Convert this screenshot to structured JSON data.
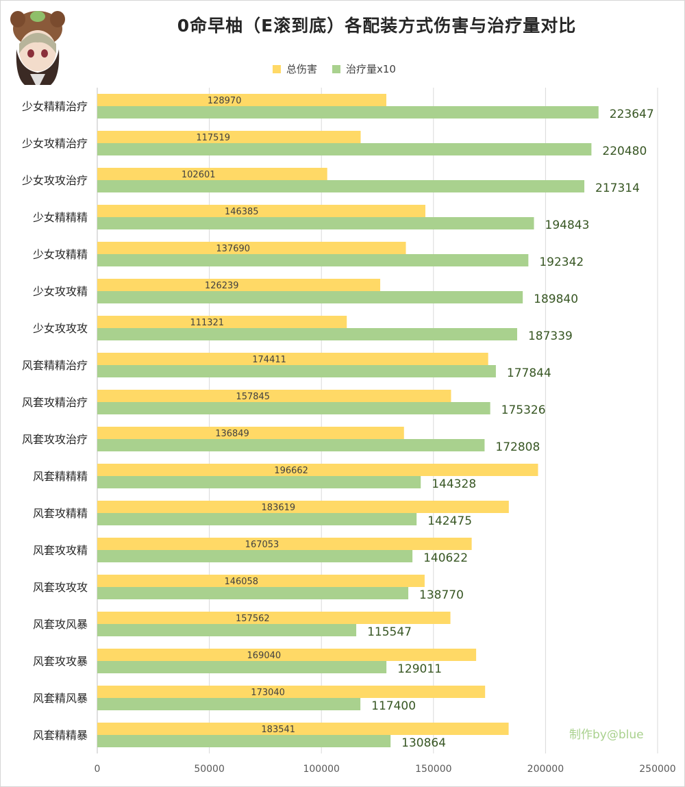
{
  "chart_data": {
    "type": "bar",
    "orientation": "horizontal",
    "title": "0命早柚（E滚到底）各配装方式伤害与治疗量对比",
    "legend_position": "top",
    "grid": true,
    "xlim": [
      0,
      250000
    ],
    "x_ticks": [
      "0",
      "50000",
      "100000",
      "150000",
      "200000",
      "250000"
    ],
    "categories": [
      "少女精精治疗",
      "少女攻精治疗",
      "少女攻攻治疗",
      "少女精精精",
      "少女攻精精",
      "少女攻攻精",
      "少女攻攻攻",
      "风套精精治疗",
      "风套攻精治疗",
      "风套攻攻治疗",
      "风套精精精",
      "风套攻精精",
      "风套攻攻精",
      "风套攻攻攻",
      "风套攻风暴",
      "风套攻攻暴",
      "风套精风暴",
      "风套精精暴"
    ],
    "series": [
      {
        "name": "总伤害",
        "color": "#ffd966",
        "values": [
          128970,
          117519,
          102601,
          146385,
          137690,
          126239,
          111321,
          174411,
          157845,
          136849,
          196662,
          183619,
          167053,
          146058,
          157562,
          169040,
          173040,
          183541
        ]
      },
      {
        "name": "治疗量x10",
        "color": "#a9d18e",
        "values": [
          223647,
          220480,
          217314,
          194843,
          192342,
          189840,
          187339,
          177844,
          175326,
          172808,
          144328,
          142475,
          140622,
          138770,
          115547,
          129011,
          117400,
          130864
        ]
      }
    ]
  },
  "watermark": "制作by@blue",
  "avatar_icon": "chibi-character-avatar-icon"
}
